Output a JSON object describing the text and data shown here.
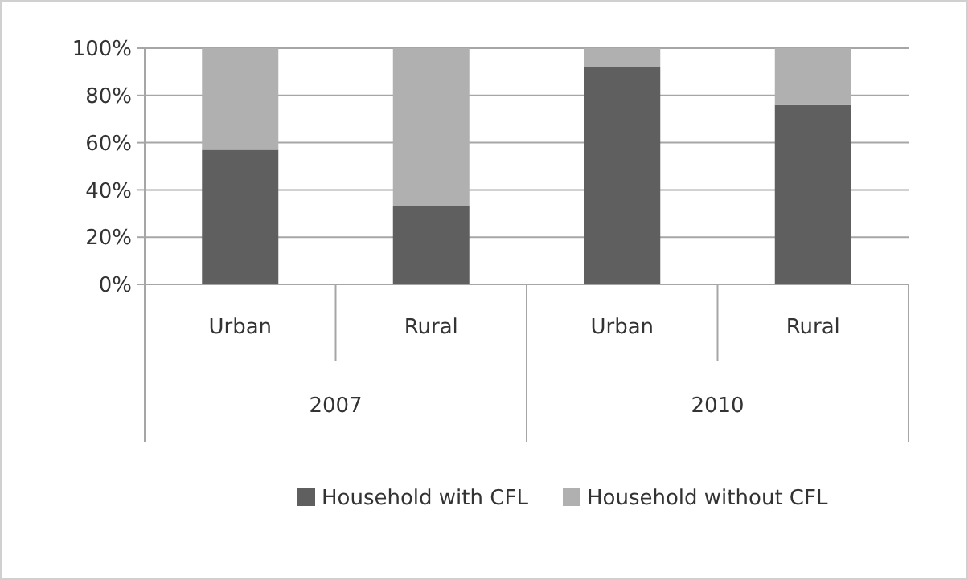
{
  "chart_data": {
    "type": "bar",
    "stacked": true,
    "categories": [
      "Urban",
      "Rural",
      "Urban",
      "Rural"
    ],
    "series": [
      {
        "name": "Household with CFL",
        "color": "#5f5f5f",
        "values": [
          57,
          33,
          92,
          76
        ]
      },
      {
        "name": "Household without CFL",
        "color": "#b0b0b0",
        "values": [
          43,
          67,
          8,
          24
        ]
      }
    ],
    "ylim": [
      0,
      100
    ],
    "yticks": [
      {
        "value": 0,
        "label": "0%"
      },
      {
        "value": 20,
        "label": "20%"
      },
      {
        "value": 40,
        "label": "40%"
      },
      {
        "value": 60,
        "label": "60%"
      },
      {
        "value": 80,
        "label": "80%"
      },
      {
        "value": 100,
        "label": "100%"
      }
    ],
    "grid": "y",
    "legend": "bottom",
    "annotations": [
      "2007",
      "2010"
    ]
  }
}
